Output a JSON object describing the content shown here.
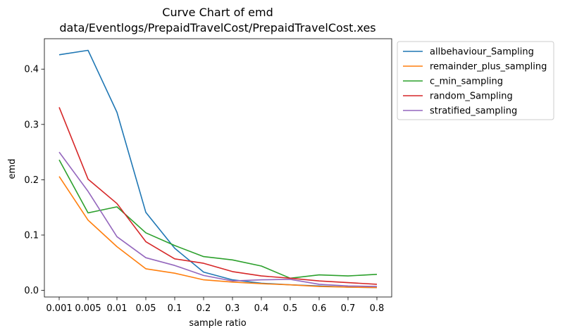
{
  "chart_data": {
    "type": "line",
    "title_line1": "Curve Chart of emd",
    "title_line2": "data/Eventlogs/PrepaidTravelCost/PrepaidTravelCost.xes",
    "xlabel": "sample ratio",
    "ylabel": "emd",
    "categories": [
      "0.001",
      "0.005",
      "0.01",
      "0.05",
      "0.1",
      "0.2",
      "0.3",
      "0.4",
      "0.5",
      "0.6",
      "0.7",
      "0.8"
    ],
    "ylim": [
      -0.012,
      0.455
    ],
    "yticks": [
      0.0,
      0.1,
      0.2,
      0.3,
      0.4
    ],
    "ytick_labels": [
      "0.0",
      "0.1",
      "0.2",
      "0.3",
      "0.4"
    ],
    "grid": false,
    "legend_position": "outside-top-right",
    "series": [
      {
        "name": "allbehaviour_Sampling",
        "color": "#1f77b4",
        "values": [
          0.426,
          0.434,
          0.322,
          0.141,
          0.076,
          0.033,
          0.019,
          0.013,
          0.01,
          0.008,
          0.006,
          0.005
        ]
      },
      {
        "name": "remainder_plus_sampling",
        "color": "#ff7f0e",
        "values": [
          0.206,
          0.127,
          0.079,
          0.039,
          0.031,
          0.019,
          0.015,
          0.012,
          0.01,
          0.007,
          0.006,
          0.005
        ]
      },
      {
        "name": "c_min_sampling",
        "color": "#2ca02c",
        "values": [
          0.236,
          0.14,
          0.151,
          0.104,
          0.081,
          0.061,
          0.055,
          0.044,
          0.022,
          0.028,
          0.026,
          0.029
        ]
      },
      {
        "name": "random_Sampling",
        "color": "#d62728",
        "values": [
          0.331,
          0.201,
          0.157,
          0.088,
          0.057,
          0.049,
          0.034,
          0.026,
          0.022,
          0.017,
          0.014,
          0.011
        ]
      },
      {
        "name": "stratified_sampling",
        "color": "#9467bd",
        "values": [
          0.25,
          0.179,
          0.097,
          0.059,
          0.045,
          0.027,
          0.017,
          0.019,
          0.02,
          0.011,
          0.008,
          0.007
        ]
      }
    ]
  }
}
